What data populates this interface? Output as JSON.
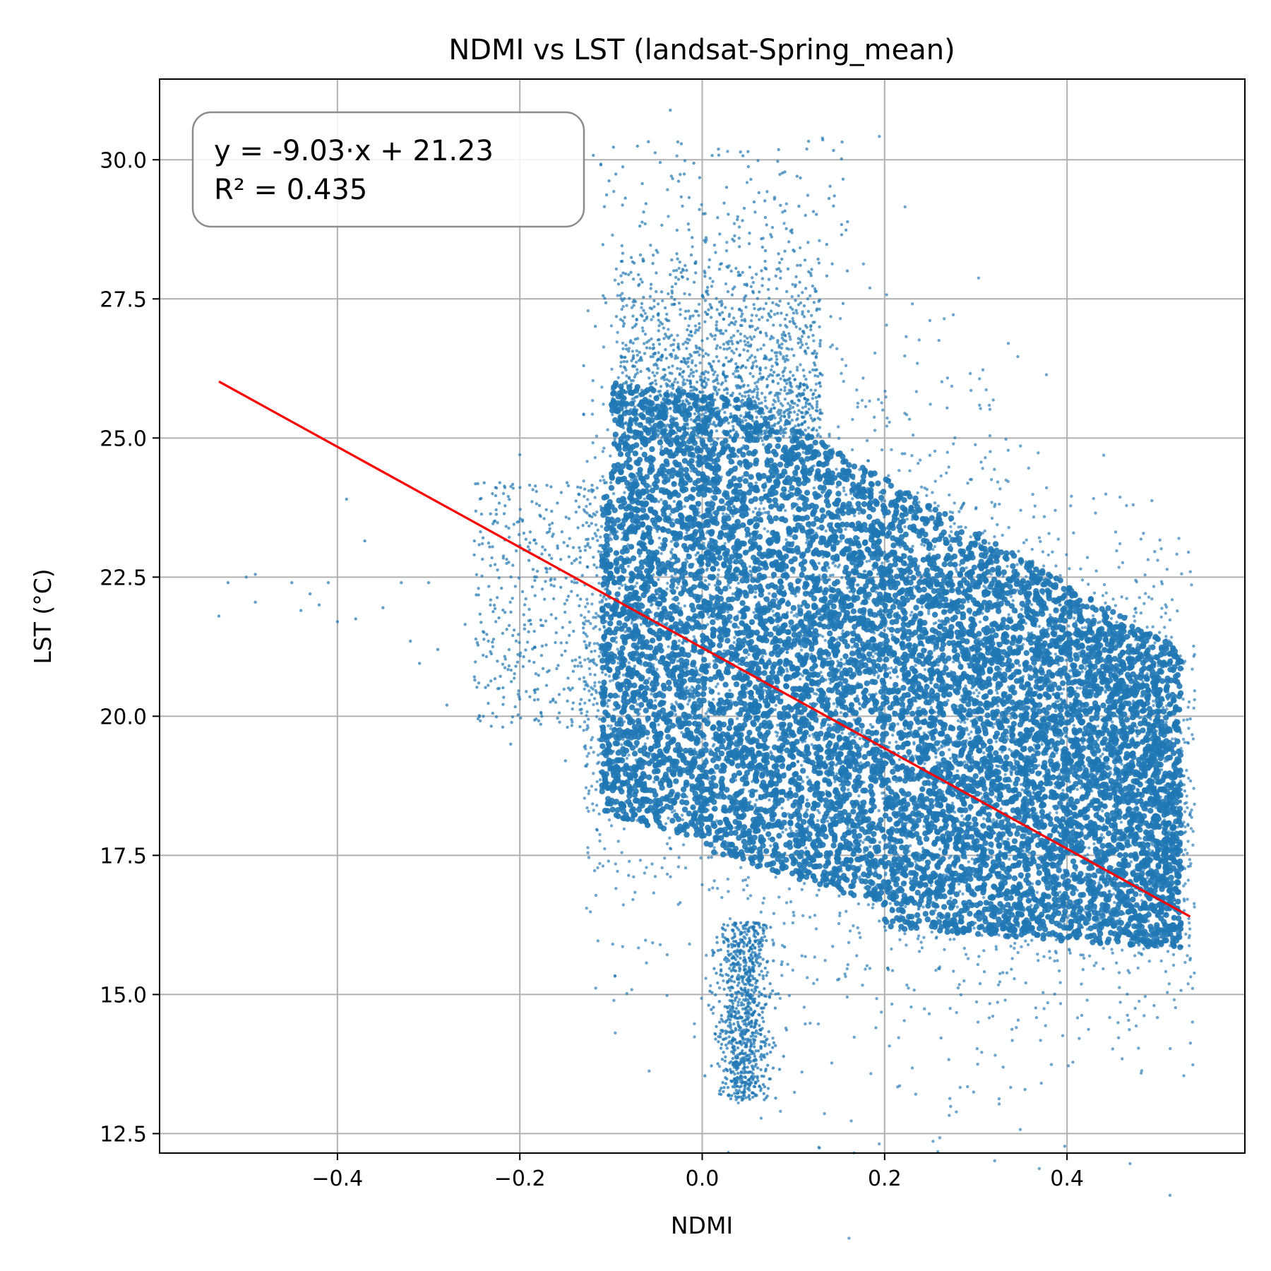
{
  "chart_data": {
    "type": "scatter",
    "title": "NDMI vs LST (landsat-Spring_mean)",
    "xlabel": "NDMI",
    "ylabel": "LST (°C)",
    "xlim": [
      -0.595,
      0.595
    ],
    "ylim": [
      12.15,
      31.45
    ],
    "x_ticks": [
      -0.4,
      -0.2,
      0.0,
      0.2,
      0.4
    ],
    "x_tick_labels": [
      "−0.4",
      "−0.2",
      "0.0",
      "0.2",
      "0.4"
    ],
    "y_ticks": [
      12.5,
      15.0,
      17.5,
      20.0,
      22.5,
      25.0,
      27.5,
      30.0
    ],
    "y_tick_labels": [
      "12.5",
      "15.0",
      "17.5",
      "20.0",
      "22.5",
      "25.0",
      "27.5",
      "30.0"
    ],
    "grid": true,
    "point_color": "#1f77b4",
    "fit_line_color": "#ff0000",
    "fit": {
      "slope": -9.03,
      "intercept": 21.23,
      "x_range": [
        -0.53,
        0.535
      ]
    },
    "annotation": {
      "equation": "y = -9.03·x + 21.23",
      "r_squared": "R² = 0.435",
      "placement": "top-left"
    },
    "series": [
      {
        "points": [
          [
            -0.53,
            21.8
          ],
          [
            -0.52,
            22.4
          ],
          [
            -0.5,
            22.5
          ],
          [
            -0.49,
            22.55
          ],
          [
            -0.49,
            22.05
          ],
          [
            -0.45,
            22.4
          ],
          [
            -0.44,
            21.9
          ],
          [
            -0.43,
            22.2
          ],
          [
            -0.42,
            22.0
          ],
          [
            -0.41,
            22.4
          ],
          [
            -0.4,
            21.7
          ],
          [
            -0.39,
            23.9
          ],
          [
            -0.38,
            21.75
          ],
          [
            -0.37,
            23.15
          ],
          [
            -0.35,
            21.95
          ],
          [
            -0.33,
            22.4
          ],
          [
            -0.32,
            21.35
          ],
          [
            -0.31,
            20.95
          ],
          [
            -0.3,
            22.4
          ],
          [
            -0.29,
            21.2
          ],
          [
            -0.28,
            20.2
          ],
          [
            -0.26,
            21.65
          ],
          [
            -0.25,
            22.9
          ],
          [
            -0.24,
            20.0
          ],
          [
            -0.23,
            24.0
          ],
          [
            -0.22,
            22.3
          ],
          [
            -0.21,
            19.5
          ],
          [
            -0.2,
            24.7
          ],
          [
            -0.19,
            22.8
          ],
          [
            -0.18,
            20.3
          ],
          [
            -0.17,
            23.3
          ],
          [
            -0.16,
            21.5
          ],
          [
            -0.15,
            19.2
          ],
          [
            -0.14,
            22.4
          ],
          [
            -0.13,
            26.3
          ]
        ]
      }
    ]
  }
}
